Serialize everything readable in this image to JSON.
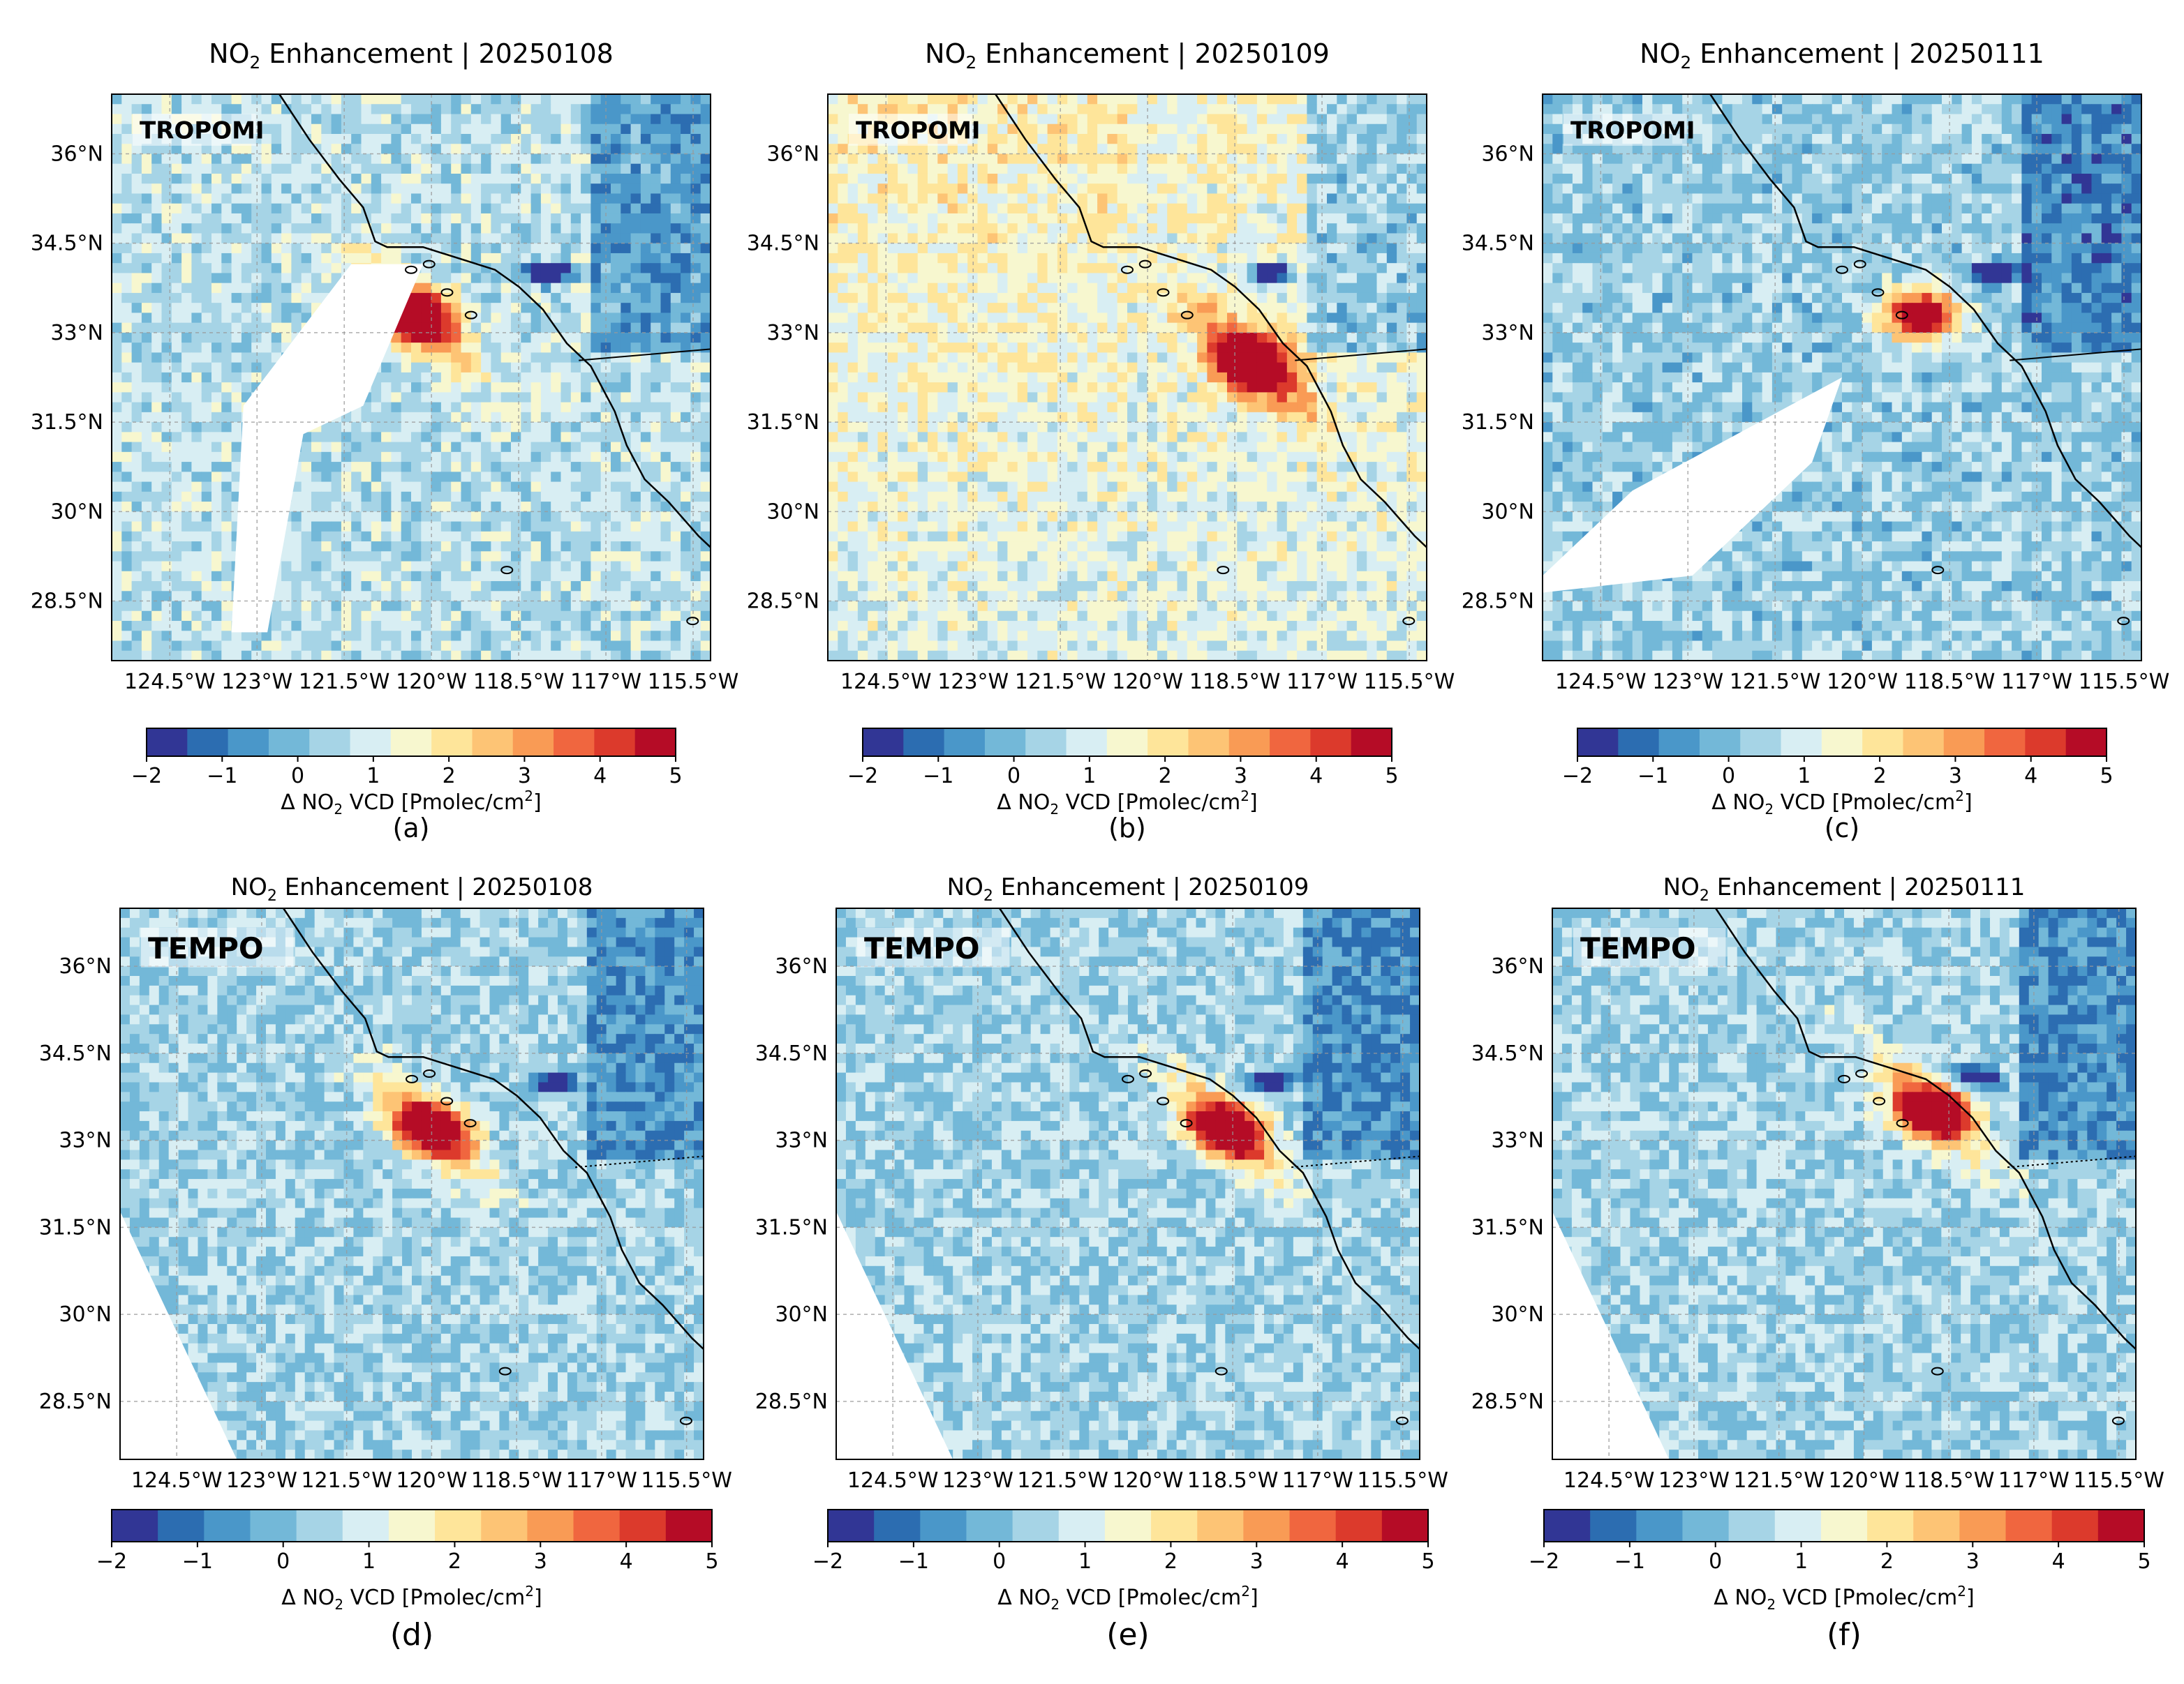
{
  "figure": {
    "colormap": [
      "#313695",
      "#2c6db1",
      "#4a97c9",
      "#73b8d8",
      "#a6d4e6",
      "#d8eef3",
      "#f7f7cf",
      "#fee59a",
      "#fdc475",
      "#f99b55",
      "#f0663f",
      "#dc3a2c",
      "#b50c26"
    ],
    "colorbar_ticks": [
      "−2",
      "−1",
      "0",
      "1",
      "2",
      "3",
      "4",
      "5"
    ],
    "colorbar_label_prefix": "Δ NO",
    "colorbar_label_sub": "2",
    "colorbar_label_mid": " VCD [Pmolec/cm",
    "colorbar_label_sup": "2",
    "colorbar_label_suffix": "]",
    "lon_ticks": [
      "124.5°W",
      "123°W",
      "121.5°W",
      "120°W",
      "118.5°W",
      "117°W",
      "115.5°W"
    ],
    "lat_ticks": [
      "36°N",
      "34.5°N",
      "33°N",
      "31.5°N",
      "30°N",
      "28.5°N"
    ],
    "title_prefix": "NO",
    "title_sub": "2",
    "title_mid": " Enhancement | "
  },
  "chart_data": [
    {
      "type": "heatmap",
      "panel": "(a)",
      "instrument": "TROPOMI",
      "date": "20250108",
      "title": "NO2 Enhancement | 20250108",
      "colorbar_range": [
        -2,
        5
      ],
      "x_axis": "longitude",
      "y_axis": "latitude",
      "xlim": [
        -125.5,
        -115.2
      ],
      "ylim": [
        27.5,
        37.0
      ],
      "hotspot": {
        "lon": -120.3,
        "lat": 33.3,
        "value": 5
      },
      "low_anomaly": {
        "lon": -118.0,
        "lat": 34.0,
        "value": -2
      }
    },
    {
      "type": "heatmap",
      "panel": "(b)",
      "instrument": "TROPOMI",
      "date": "20250109",
      "title": "NO2 Enhancement | 20250109",
      "colorbar_range": [
        -2,
        5
      ],
      "x_axis": "longitude",
      "y_axis": "latitude",
      "xlim": [
        -125.5,
        -115.2
      ],
      "ylim": [
        27.5,
        37.0
      ],
      "hotspot": {
        "lon": -118.2,
        "lat": 32.5,
        "value": 5
      },
      "low_anomaly": {
        "lon": -117.9,
        "lat": 34.0,
        "value": -2
      }
    },
    {
      "type": "heatmap",
      "panel": "(c)",
      "instrument": "TROPOMI",
      "date": "20250111",
      "title": "NO2 Enhancement | 20250111",
      "colorbar_range": [
        -2,
        5
      ],
      "x_axis": "longitude",
      "y_axis": "latitude",
      "xlim": [
        -125.5,
        -115.2
      ],
      "ylim": [
        27.5,
        37.0
      ],
      "hotspot": {
        "lon": -119.0,
        "lat": 33.3,
        "value": 4.5
      },
      "low_anomaly": {
        "lon": -117.7,
        "lat": 34.0,
        "value": -2
      }
    },
    {
      "type": "heatmap",
      "panel": "(d)",
      "instrument": "TEMPO",
      "date": "20250108",
      "title": "NO2 Enhancement | 20250108",
      "colorbar_range": [
        -2,
        5
      ],
      "x_axis": "longitude",
      "y_axis": "latitude",
      "xlim": [
        -125.5,
        -115.2
      ],
      "ylim": [
        27.5,
        37.0
      ],
      "hotspot": {
        "lon": -120.0,
        "lat": 33.2,
        "value": 5
      },
      "low_anomaly": {
        "lon": -117.8,
        "lat": 34.0,
        "value": -2
      }
    },
    {
      "type": "heatmap",
      "panel": "(e)",
      "instrument": "TEMPO",
      "date": "20250109",
      "title": "NO2 Enhancement | 20250109",
      "colorbar_range": [
        -2,
        5
      ],
      "x_axis": "longitude",
      "y_axis": "latitude",
      "xlim": [
        -125.5,
        -115.2
      ],
      "ylim": [
        27.5,
        37.0
      ],
      "hotspot": {
        "lon": -118.6,
        "lat": 33.2,
        "value": 5
      },
      "low_anomaly": {
        "lon": -117.8,
        "lat": 34.0,
        "value": -2
      }
    },
    {
      "type": "heatmap",
      "panel": "(f)",
      "instrument": "TEMPO",
      "date": "20250111",
      "title": "NO2 Enhancement | 20250111",
      "colorbar_range": [
        -2,
        5
      ],
      "x_axis": "longitude",
      "y_axis": "latitude",
      "xlim": [
        -125.5,
        -115.2
      ],
      "ylim": [
        27.5,
        37.0
      ],
      "hotspot": {
        "lon": -118.8,
        "lat": 33.5,
        "value": 4
      },
      "low_anomaly": {
        "lon": -118.0,
        "lat": 34.1,
        "value": -2
      }
    }
  ]
}
